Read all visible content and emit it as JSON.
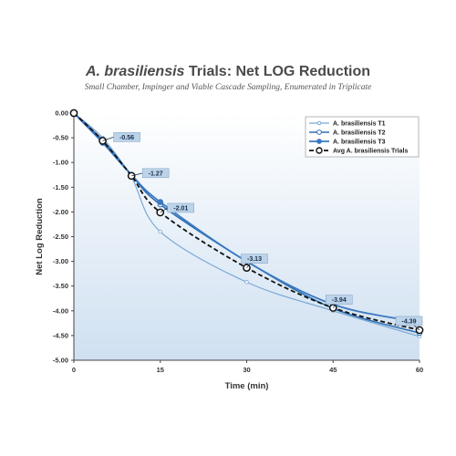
{
  "chart_data": {
    "type": "line",
    "title_italic": "A. brasiliensis",
    "title_rest": " Trials: Net LOG Reduction",
    "subtitle": "Small Chamber, Impinger and Viable Cascade Sampling, Enumerated in Triplicate",
    "xlabel": "Time (min)",
    "ylabel": "Net Log Reduction",
    "x": [
      0,
      5,
      10,
      15,
      30,
      45,
      60
    ],
    "x_ticks": [
      "0",
      "15",
      "30",
      "45",
      "60"
    ],
    "x_tick_values": [
      0,
      15,
      30,
      45,
      60
    ],
    "y_ticks": [
      "0.00",
      "-0.50",
      "-1.00",
      "-1.50",
      "-2.00",
      "-2.50",
      "-3.00",
      "-3.50",
      "-4.00",
      "-4.50",
      "-5.00"
    ],
    "y_tick_values": [
      0,
      -0.5,
      -1,
      -1.5,
      -2,
      -2.5,
      -3,
      -3.5,
      -4,
      -4.5,
      -5
    ],
    "ylim": [
      -5.0,
      0.0
    ],
    "xlim": [
      0,
      60
    ],
    "grid": false,
    "legend_position": "top-right",
    "series": [
      {
        "name": "A. brasiliensis T1",
        "values": [
          0,
          -0.5,
          -1.3,
          -2.4,
          -3.42,
          -4.0,
          -4.52
        ],
        "color": "#7aa8d6",
        "marker": "small-dot"
      },
      {
        "name": "A. brasiliensis T2",
        "values": [
          0,
          -0.55,
          -1.25,
          -1.85,
          -3.0,
          -3.95,
          -4.45
        ],
        "color": "#2f6fb0",
        "marker": "open-circle"
      },
      {
        "name": "A. brasiliensis T3",
        "values": [
          0,
          -0.6,
          -1.25,
          -1.8,
          -3.0,
          -3.87,
          -4.23
        ],
        "color": "#3a78c0",
        "marker": "filled-circle"
      },
      {
        "name": "Avg A. brasiliensis Trials",
        "values": [
          0,
          -0.56,
          -1.27,
          -2.01,
          -3.13,
          -3.94,
          -4.39
        ],
        "color": "#111111",
        "marker": "open-circle-dashed"
      }
    ],
    "data_labels": [
      "-0.56",
      "-1.27",
      "-2.01",
      "-3.13",
      "-3.94",
      "-4.39"
    ],
    "data_label_x": [
      5,
      10,
      15,
      30,
      45,
      60
    ],
    "data_label_values": [
      -0.56,
      -1.27,
      -2.01,
      -3.13,
      -3.94,
      -4.39
    ],
    "colors": {
      "plot_bg_top": "#ffffff",
      "plot_bg_bottom": "#cfe0f1",
      "label_box": "#bcd4ea"
    }
  }
}
